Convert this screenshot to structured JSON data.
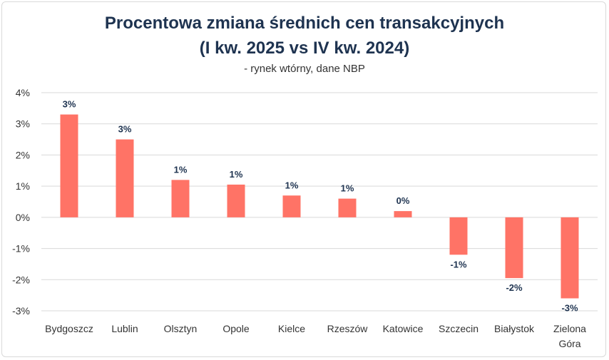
{
  "chart_data": {
    "type": "bar",
    "title_line1": "Procentowa zmiana średnich cen transakcyjnych",
    "title_line2": "(I kw. 2025 vs IV kw. 2024)",
    "subtitle": "- rynek wtórny, dane NBP",
    "categories": [
      [
        "Bydgoszcz"
      ],
      [
        "Lublin"
      ],
      [
        "Olsztyn"
      ],
      [
        "Opole"
      ],
      [
        "Kielce"
      ],
      [
        "Rzeszów"
      ],
      [
        "Katowice"
      ],
      [
        "Szczecin"
      ],
      [
        "Białystok"
      ],
      [
        "Zielona",
        "Góra"
      ]
    ],
    "values": [
      3.3,
      2.5,
      1.2,
      1.05,
      0.7,
      0.6,
      0.2,
      -1.2,
      -1.95,
      -2.6
    ],
    "data_labels": [
      "3%",
      "3%",
      "1%",
      "1%",
      "1%",
      "1%",
      "0%",
      "-1%",
      "-2%",
      "-3%"
    ],
    "yticks": [
      "4%",
      "3%",
      "2%",
      "1%",
      "0%",
      "-1%",
      "-2%",
      "-3%"
    ],
    "ytick_values": [
      4,
      3,
      2,
      1,
      0,
      -1,
      -2,
      -3
    ],
    "ylim": [
      -3,
      4
    ],
    "grid": true,
    "colors": {
      "bar": "#ff7366",
      "grid": "#d9d9d9",
      "text": "#333333",
      "label": "#1e3350"
    }
  }
}
